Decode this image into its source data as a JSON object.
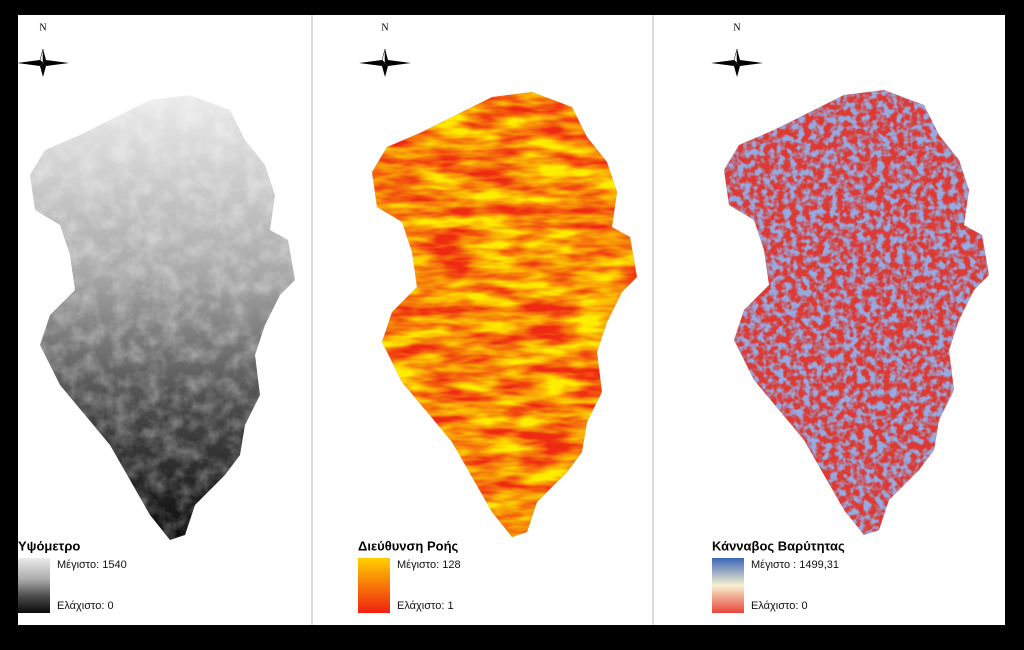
{
  "panels": [
    {
      "north": "N",
      "title": "Υψόμετρο",
      "legend_max": "Μέγιστο: 1540",
      "legend_min": "Ελάχιστο: 0"
    },
    {
      "north": "N",
      "title": "Διεύθυνση Ροής",
      "legend_max": "Μέγιστο: 128",
      "legend_min": "Ελάχιστο: 1"
    },
    {
      "north": "N",
      "title": "Κάνναβος Βαρύτητας",
      "legend_max": "Μέγιστο : 1499,31",
      "legend_min": "Ελάχιστο: 0"
    }
  ]
}
